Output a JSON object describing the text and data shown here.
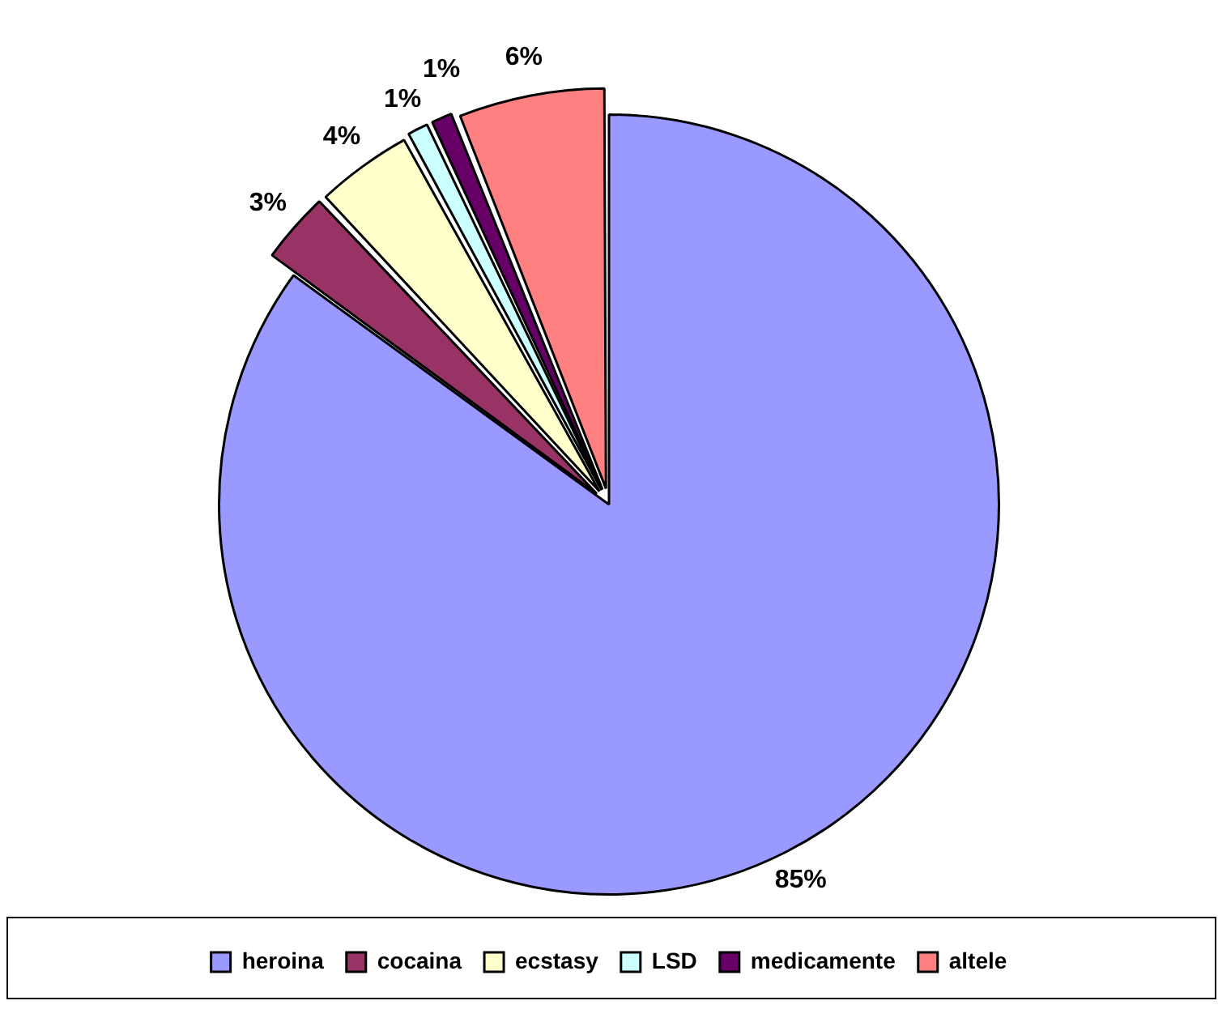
{
  "chart_data": {
    "type": "pie",
    "categories": [
      "heroina",
      "cocaina",
      "ecstasy",
      "LSD",
      "medicamente",
      "altele"
    ],
    "values": [
      85,
      3,
      4,
      1,
      1,
      6
    ],
    "colors": [
      "#9999ff",
      "#993366",
      "#ffffcc",
      "#ccffff",
      "#660066",
      "#ff8080"
    ],
    "value_labels": [
      "85%",
      "3%",
      "4%",
      "1%",
      "1%",
      "6%"
    ],
    "legend": "bottom"
  }
}
